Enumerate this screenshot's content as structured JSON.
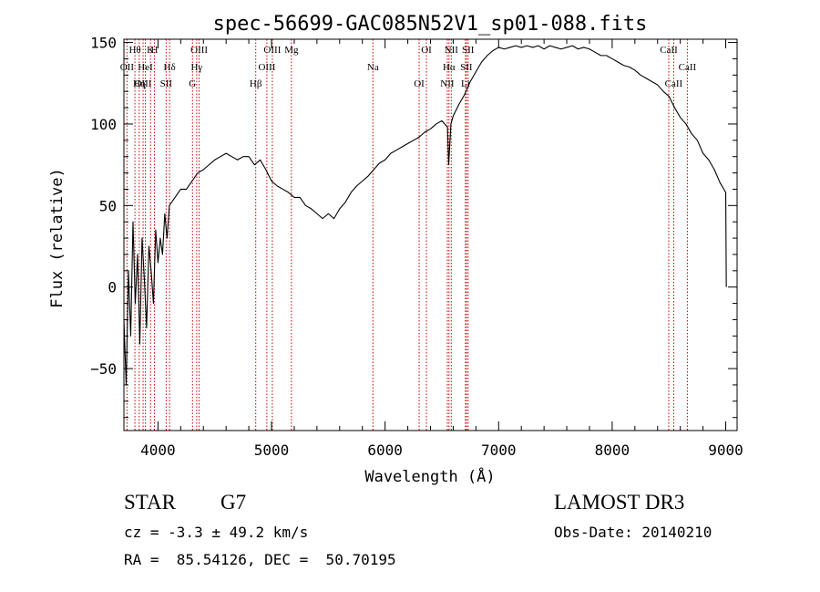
{
  "chart_data": {
    "type": "line",
    "title": "spec-56699-GAC085N52V1_sp01-088.fits",
    "xlabel": "Wavelength (Å)",
    "ylabel": "Flux (relative)",
    "xlim": [
      3700,
      9100
    ],
    "ylim": [
      -88,
      152
    ],
    "xticks": [
      4000,
      5000,
      6000,
      7000,
      8000,
      9000
    ],
    "yticks": [
      -50,
      0,
      50,
      100,
      150
    ],
    "series": [
      {
        "name": "spectrum",
        "x": [
          3700,
          3720,
          3740,
          3760,
          3780,
          3800,
          3820,
          3840,
          3860,
          3880,
          3900,
          3920,
          3940,
          3960,
          3980,
          4000,
          4020,
          4040,
          4060,
          4080,
          4100,
          4150,
          4200,
          4250,
          4300,
          4350,
          4400,
          4450,
          4500,
          4550,
          4600,
          4650,
          4700,
          4750,
          4800,
          4850,
          4900,
          4950,
          5000,
          5050,
          5100,
          5150,
          5200,
          5250,
          5300,
          5350,
          5400,
          5450,
          5500,
          5550,
          5600,
          5650,
          5700,
          5750,
          5800,
          5850,
          5900,
          5950,
          6000,
          6050,
          6100,
          6150,
          6200,
          6250,
          6300,
          6350,
          6400,
          6450,
          6500,
          6550,
          6560,
          6580,
          6600,
          6650,
          6700,
          6750,
          6800,
          6850,
          6900,
          6950,
          7000,
          7050,
          7100,
          7150,
          7200,
          7250,
          7300,
          7350,
          7400,
          7450,
          7500,
          7550,
          7600,
          7650,
          7700,
          7750,
          7800,
          7850,
          7900,
          7950,
          8000,
          8050,
          8100,
          8150,
          8200,
          8250,
          8300,
          8350,
          8400,
          8450,
          8500,
          8550,
          8600,
          8650,
          8700,
          8750,
          8800,
          8850,
          8900,
          8950,
          9000,
          9005
        ],
        "values": [
          -20,
          -60,
          10,
          -30,
          40,
          -10,
          20,
          -35,
          30,
          5,
          -25,
          25,
          10,
          -10,
          35,
          15,
          30,
          20,
          45,
          30,
          50,
          55,
          60,
          60,
          65,
          70,
          72,
          75,
          78,
          80,
          82,
          80,
          78,
          80,
          80,
          75,
          78,
          72,
          65,
          62,
          60,
          58,
          55,
          55,
          50,
          48,
          45,
          42,
          45,
          42,
          48,
          52,
          58,
          62,
          65,
          68,
          72,
          76,
          78,
          82,
          84,
          86,
          88,
          90,
          92,
          95,
          97,
          100,
          102,
          98,
          75,
          100,
          105,
          112,
          118,
          126,
          132,
          138,
          142,
          145,
          147,
          146,
          147,
          148,
          147,
          148,
          147,
          148,
          146,
          148,
          147,
          146,
          147,
          148,
          146,
          147,
          146,
          144,
          142,
          142,
          140,
          138,
          136,
          135,
          133,
          130,
          128,
          126,
          124,
          120,
          117,
          110,
          104,
          100,
          94,
          90,
          82,
          78,
          72,
          64,
          58,
          0
        ]
      }
    ],
    "lines": [
      {
        "name": "Hθ",
        "x": 3797
      },
      {
        "name": "OII",
        "x": 3727
      },
      {
        "name": "OIII",
        "x": 3869
      },
      {
        "name": "K",
        "x": 3934
      },
      {
        "name": "HeI",
        "x": 3889
      },
      {
        "name": "Hη",
        "x": 3835
      },
      {
        "name": "H",
        "x": 3969
      },
      {
        "name": "Hδ",
        "x": 4102
      },
      {
        "name": "SII",
        "x": 4072
      },
      {
        "name": "OIII",
        "x": 4363
      },
      {
        "name": "Hγ",
        "x": 4341
      },
      {
        "name": "G",
        "x": 4304
      },
      {
        "name": "OIII",
        "x": 5007
      },
      {
        "name": "OIII",
        "x": 4959
      },
      {
        "name": "Hβ",
        "x": 4861
      },
      {
        "name": "Mg",
        "x": 5175
      },
      {
        "name": "Na",
        "x": 5893
      },
      {
        "name": "OI",
        "x": 6300
      },
      {
        "name": "OI",
        "x": 6364
      },
      {
        "name": "Hα",
        "x": 6563
      },
      {
        "name": "NII",
        "x": 6548
      },
      {
        "name": "NII",
        "x": 6583
      },
      {
        "name": "SII",
        "x": 6716
      },
      {
        "name": "Li",
        "x": 6708
      },
      {
        "name": "SII",
        "x": 6731
      },
      {
        "name": "CaII",
        "x": 8662
      },
      {
        "name": "CaII",
        "x": 8542
      },
      {
        "name": "CaII",
        "x": 8498
      }
    ]
  },
  "info": {
    "class": "STAR",
    "subclass": "G7",
    "survey": "LAMOST DR3",
    "cz": "cz = -3.3 ± 49.2 km/s",
    "obs_date": "Obs-Date: 20140210",
    "radec": "RA =  85.54126, DEC =  50.70195"
  }
}
